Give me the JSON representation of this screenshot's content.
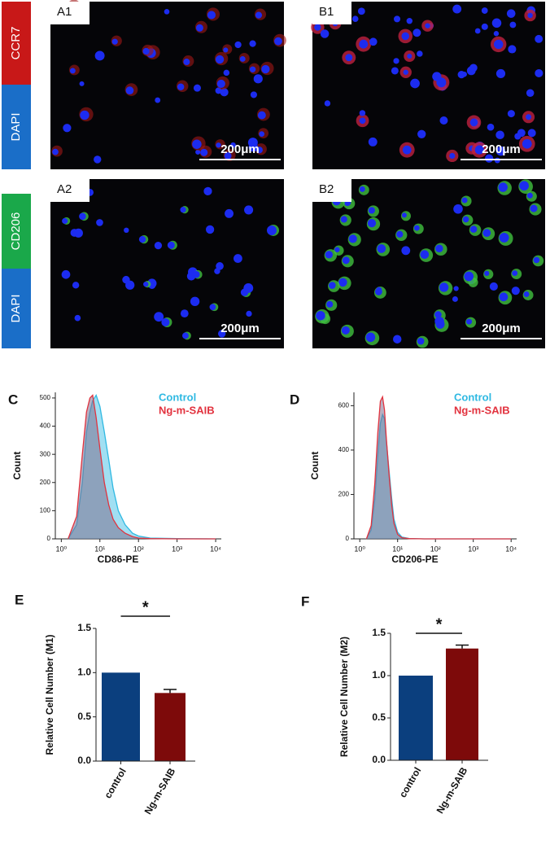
{
  "micrographs": [
    {
      "label": "A1",
      "scale_bar": "200μm"
    },
    {
      "label": "B1",
      "scale_bar": "200μm"
    },
    {
      "label": "A2",
      "scale_bar": "200μm"
    },
    {
      "label": "B2",
      "scale_bar": "200μm"
    }
  ],
  "row_labels": [
    [
      "CCR7",
      "DAPI"
    ],
    [
      "CD206",
      "DAPI"
    ]
  ],
  "chart_data": [
    {
      "type": "area",
      "panel_label": "C",
      "x_label": "CD86-PE",
      "y_label": "Count",
      "xscale": "log",
      "x": [
        1.5,
        2.5,
        3.5,
        4.5,
        5.5,
        6.5,
        8,
        10,
        13,
        17,
        22,
        30,
        45,
        70,
        100,
        200,
        1000,
        10000
      ],
      "series": [
        {
          "name": "Control",
          "color": "#2fb9e2",
          "values": [
            0,
            50,
            200,
            380,
            450,
            490,
            510,
            470,
            380,
            280,
            180,
            100,
            50,
            20,
            10,
            3,
            1,
            0
          ]
        },
        {
          "name": "Ng-m-SAIB",
          "color": "#e2323e",
          "values": [
            0,
            80,
            300,
            450,
            500,
            510,
            430,
            320,
            200,
            120,
            70,
            40,
            20,
            8,
            3,
            1,
            0,
            0
          ]
        }
      ],
      "xlim": [
        0.7,
        14000
      ],
      "xticks": [
        {
          "value": 1,
          "label": "10⁰"
        },
        {
          "value": 10,
          "label": "10¹"
        },
        {
          "value": 100,
          "label": "10²"
        },
        {
          "value": 1000,
          "label": "10³"
        },
        {
          "value": 10000,
          "label": "10⁴"
        }
      ],
      "ylim": [
        0,
        520
      ],
      "yticks": [
        0,
        100,
        200,
        300,
        400,
        500
      ]
    },
    {
      "type": "area",
      "panel_label": "D",
      "x_label": "CD206-PE",
      "y_label": "Count",
      "xscale": "log",
      "x": [
        1.5,
        2,
        2.5,
        3,
        3.5,
        4,
        4.5,
        5,
        6,
        7,
        8,
        10,
        13,
        20,
        50,
        10000
      ],
      "series": [
        {
          "name": "Control",
          "color": "#2fb9e2",
          "values": [
            0,
            40,
            180,
            380,
            520,
            560,
            540,
            450,
            300,
            180,
            90,
            30,
            8,
            2,
            0,
            0
          ]
        },
        {
          "name": "Ng-m-SAIB",
          "color": "#e2323e",
          "values": [
            0,
            60,
            250,
            480,
            620,
            640,
            580,
            460,
            280,
            150,
            70,
            20,
            5,
            1,
            0,
            0
          ]
        }
      ],
      "xlim": [
        0.7,
        14000
      ],
      "xticks": [
        {
          "value": 1,
          "label": "10⁰"
        },
        {
          "value": 10,
          "label": "10¹"
        },
        {
          "value": 100,
          "label": "10²"
        },
        {
          "value": 1000,
          "label": "10³"
        },
        {
          "value": 10000,
          "label": "10⁴"
        }
      ],
      "ylim": [
        0,
        660
      ],
      "yticks": [
        0,
        200,
        400,
        600
      ]
    },
    {
      "type": "bar",
      "panel_label": "E",
      "y_label": "Relative Cell Number (M1)",
      "annotation": "*",
      "categories": [
        "control",
        "Ng-m-SAIB"
      ],
      "values": [
        1.0,
        0.77
      ],
      "errors": [
        null,
        0.04
      ],
      "colors": [
        "#0b3f7e",
        "#7d0a0a"
      ],
      "ylim": [
        0,
        1.5
      ],
      "yticks": [
        {
          "value": 0,
          "label": "0.0"
        },
        {
          "value": 0.5,
          "label": "0.5"
        },
        {
          "value": 1,
          "label": "1.0"
        },
        {
          "value": 1.5,
          "label": "1.5"
        }
      ]
    },
    {
      "type": "bar",
      "panel_label": "F",
      "y_label": "Relative Cell Number (M2)",
      "annotation": "*",
      "categories": [
        "control",
        "Ng-m-SAIB"
      ],
      "values": [
        1.0,
        1.32
      ],
      "errors": [
        null,
        0.04
      ],
      "colors": [
        "#0b3f7e",
        "#7d0a0a"
      ],
      "ylim": [
        0,
        1.5
      ],
      "yticks": [
        {
          "value": 0,
          "label": "0.0"
        },
        {
          "value": 0.5,
          "label": "0.5"
        },
        {
          "value": 1,
          "label": "1.0"
        },
        {
          "value": 1.5,
          "label": "1.5"
        }
      ]
    }
  ]
}
